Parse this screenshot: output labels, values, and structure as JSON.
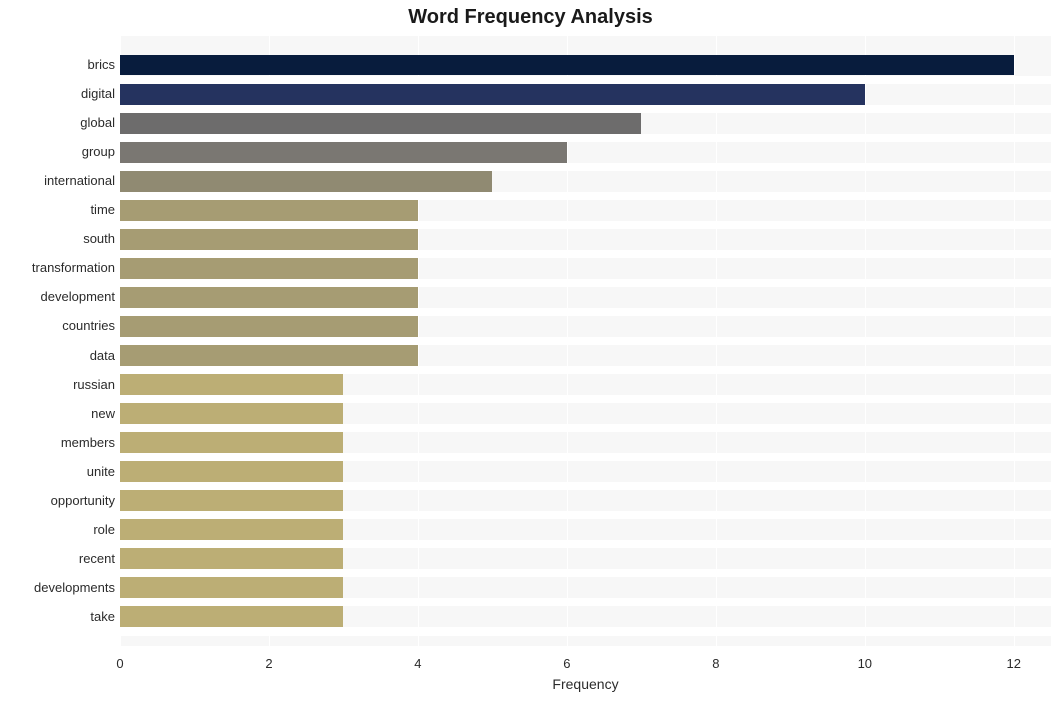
{
  "chart": {
    "type": "bar-horizontal",
    "title": "Word Frequency Analysis",
    "title_fontsize": 20,
    "title_fontweight": "bold",
    "xlabel": "Frequency",
    "label_fontsize": 14,
    "background_color": "#ffffff",
    "plot_background_color": "#f7f7f7",
    "grid_color": "#ffffff",
    "xlim": [
      0,
      12.5
    ],
    "xticks": [
      0,
      2,
      4,
      6,
      8,
      10,
      12
    ],
    "y_tick_fontsize": 13,
    "x_tick_fontsize": 13,
    "bar_height_ratio": 0.72,
    "bars": [
      {
        "label": "brics",
        "value": 12,
        "color": "#081c3d"
      },
      {
        "label": "digital",
        "value": 10,
        "color": "#25335f"
      },
      {
        "label": "global",
        "value": 7,
        "color": "#6d6c6c"
      },
      {
        "label": "group",
        "value": 6,
        "color": "#7a7772"
      },
      {
        "label": "international",
        "value": 5,
        "color": "#908a72"
      },
      {
        "label": "time",
        "value": 4,
        "color": "#a69c73"
      },
      {
        "label": "south",
        "value": 4,
        "color": "#a69c73"
      },
      {
        "label": "transformation",
        "value": 4,
        "color": "#a69c73"
      },
      {
        "label": "development",
        "value": 4,
        "color": "#a69c73"
      },
      {
        "label": "countries",
        "value": 4,
        "color": "#a69c73"
      },
      {
        "label": "data",
        "value": 4,
        "color": "#a69c73"
      },
      {
        "label": "russian",
        "value": 3,
        "color": "#bcae75"
      },
      {
        "label": "new",
        "value": 3,
        "color": "#bcae75"
      },
      {
        "label": "members",
        "value": 3,
        "color": "#bcae75"
      },
      {
        "label": "unite",
        "value": 3,
        "color": "#bcae75"
      },
      {
        "label": "opportunity",
        "value": 3,
        "color": "#bcae75"
      },
      {
        "label": "role",
        "value": 3,
        "color": "#bcae75"
      },
      {
        "label": "recent",
        "value": 3,
        "color": "#bcae75"
      },
      {
        "label": "developments",
        "value": 3,
        "color": "#bcae75"
      },
      {
        "label": "take",
        "value": 3,
        "color": "#bcae75"
      }
    ]
  }
}
